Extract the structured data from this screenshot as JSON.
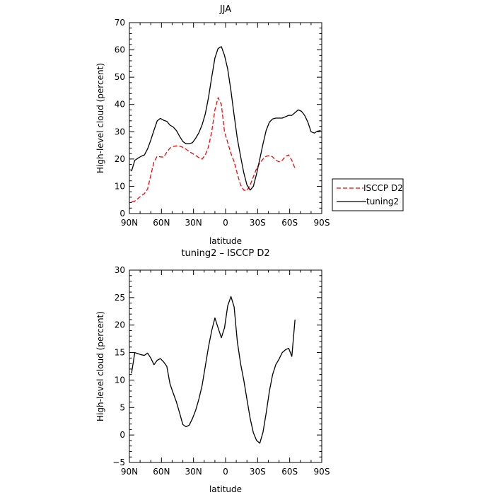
{
  "chart_data": [
    {
      "type": "line",
      "title": "JJA",
      "xlabel": "latitude",
      "ylabel": "High-level cloud (percent)",
      "xlim": [
        90,
        -90
      ],
      "ylim": [
        0,
        70
      ],
      "xticks": [
        90,
        60,
        30,
        0,
        -30,
        -60,
        -90
      ],
      "xtick_labels": [
        "90N",
        "60N",
        "30N",
        "0",
        "30S",
        "60S",
        "90S"
      ],
      "yticks": [
        0,
        10,
        20,
        30,
        40,
        50,
        60,
        70
      ],
      "ytick_labels": [
        "0",
        "10",
        "20",
        "30",
        "40",
        "50",
        "60",
        "70"
      ],
      "grid": false,
      "legend_position": "outside-right",
      "series": [
        {
          "name": "ISCCP D2",
          "color": "#ff0000",
          "dash": "dashed",
          "x": [
            88,
            85,
            82,
            79,
            76,
            73,
            70,
            67,
            64,
            61,
            58,
            55,
            52,
            49,
            46,
            43,
            40,
            37,
            34,
            31,
            28,
            25,
            22,
            19,
            16,
            13,
            10,
            7,
            4,
            1,
            -2,
            -5,
            -8,
            -11,
            -14,
            -17,
            -20,
            -23,
            -26,
            -29,
            -32,
            -35,
            -38,
            -41,
            -44,
            -47,
            -50,
            -53,
            -56,
            -59,
            -62,
            -65
          ],
          "y": [
            4.3,
            4.6,
            5.5,
            6.5,
            7.3,
            9.0,
            14.0,
            19.0,
            21.0,
            20.8,
            20.7,
            22.5,
            24.0,
            24.6,
            24.8,
            24.7,
            24.3,
            23.6,
            22.8,
            22.0,
            21.3,
            20.5,
            20.0,
            21.5,
            24.5,
            30.0,
            38.0,
            42.5,
            40.0,
            30.0,
            26.0,
            22.0,
            19.0,
            14.5,
            10.5,
            8.6,
            8.4,
            10.5,
            13.5,
            16.5,
            18.5,
            20.0,
            21.0,
            21.3,
            20.8,
            19.5,
            19.0,
            19.5,
            21.0,
            21.5,
            19.5,
            16.5
          ]
        },
        {
          "name": "tuning2",
          "color": "#000000",
          "dash": "solid",
          "x": [
            88,
            85,
            82,
            79,
            76,
            73,
            70,
            67,
            64,
            61,
            58,
            55,
            52,
            49,
            46,
            43,
            40,
            37,
            34,
            31,
            28,
            25,
            22,
            19,
            16,
            13,
            10,
            7,
            4,
            1,
            -2,
            -5,
            -8,
            -11,
            -14,
            -17,
            -20,
            -23,
            -26,
            -29,
            -32,
            -35,
            -38,
            -41,
            -44,
            -47,
            -50,
            -53,
            -56,
            -59,
            -62,
            -65,
            -68,
            -71,
            -74,
            -77,
            -80,
            -83,
            -86,
            -89
          ],
          "y": [
            15.5,
            19.5,
            20.3,
            21.0,
            21.5,
            23.7,
            26.9,
            30.6,
            34.0,
            34.9,
            34.2,
            33.8,
            32.4,
            31.7,
            30.4,
            28.3,
            26.4,
            25.6,
            25.6,
            26.0,
            27.6,
            29.6,
            32.5,
            36.5,
            42.5,
            50.0,
            57.0,
            60.5,
            61.2,
            58.0,
            53.0,
            45.0,
            36.0,
            27.5,
            21.0,
            15.0,
            10.5,
            8.6,
            10.0,
            14.5,
            20.0,
            25.5,
            30.5,
            33.5,
            34.7,
            35.0,
            35.0,
            35.0,
            35.5,
            36.0,
            36.0,
            37.0,
            38.0,
            37.5,
            36.0,
            33.5,
            30.0,
            29.5,
            30.2,
            30.4
          ]
        }
      ]
    },
    {
      "type": "line",
      "title": "tuning2 – ISCCP D2",
      "xlabel": "latitude",
      "ylabel": "High-level cloud (percent)",
      "xlim": [
        90,
        -90
      ],
      "ylim": [
        -5,
        30
      ],
      "xticks": [
        90,
        60,
        30,
        0,
        -30,
        -60,
        -90
      ],
      "xtick_labels": [
        "90N",
        "60N",
        "30N",
        "0",
        "30S",
        "60S",
        "90S"
      ],
      "yticks": [
        -5,
        0,
        5,
        10,
        15,
        20,
        25,
        30
      ],
      "ytick_labels": [
        "−5",
        "0",
        "5",
        "10",
        "15",
        "20",
        "25",
        "30"
      ],
      "grid": false,
      "series": [
        {
          "color": "#000000",
          "dash": "solid",
          "x": [
            88,
            85,
            82,
            79,
            76,
            73,
            70,
            67,
            64,
            61,
            58,
            55,
            52,
            49,
            46,
            43,
            40,
            37,
            34,
            31,
            28,
            25,
            22,
            19,
            16,
            13,
            10,
            7,
            4,
            1,
            -2,
            -5,
            -8,
            -11,
            -14,
            -17,
            -20,
            -23,
            -26,
            -29,
            -32,
            -35,
            -38,
            -41,
            -44,
            -47,
            -50,
            -53,
            -56,
            -59,
            -62,
            -65
          ],
          "y": [
            11.2,
            15.0,
            14.8,
            14.6,
            14.5,
            14.9,
            14.0,
            12.8,
            13.6,
            13.9,
            13.3,
            12.5,
            9.3,
            7.6,
            6.0,
            4.0,
            1.9,
            1.5,
            1.8,
            3.0,
            4.5,
            6.5,
            9.0,
            12.5,
            16.0,
            19.0,
            21.3,
            19.5,
            17.7,
            19.5,
            23.5,
            25.2,
            23.3,
            17.0,
            13.0,
            10.0,
            6.5,
            3.0,
            0.4,
            -1.0,
            -1.5,
            0.5,
            4.0,
            8.0,
            11.0,
            12.8,
            13.8,
            15.0,
            15.5,
            15.8,
            14.3,
            21.0
          ]
        }
      ]
    }
  ]
}
